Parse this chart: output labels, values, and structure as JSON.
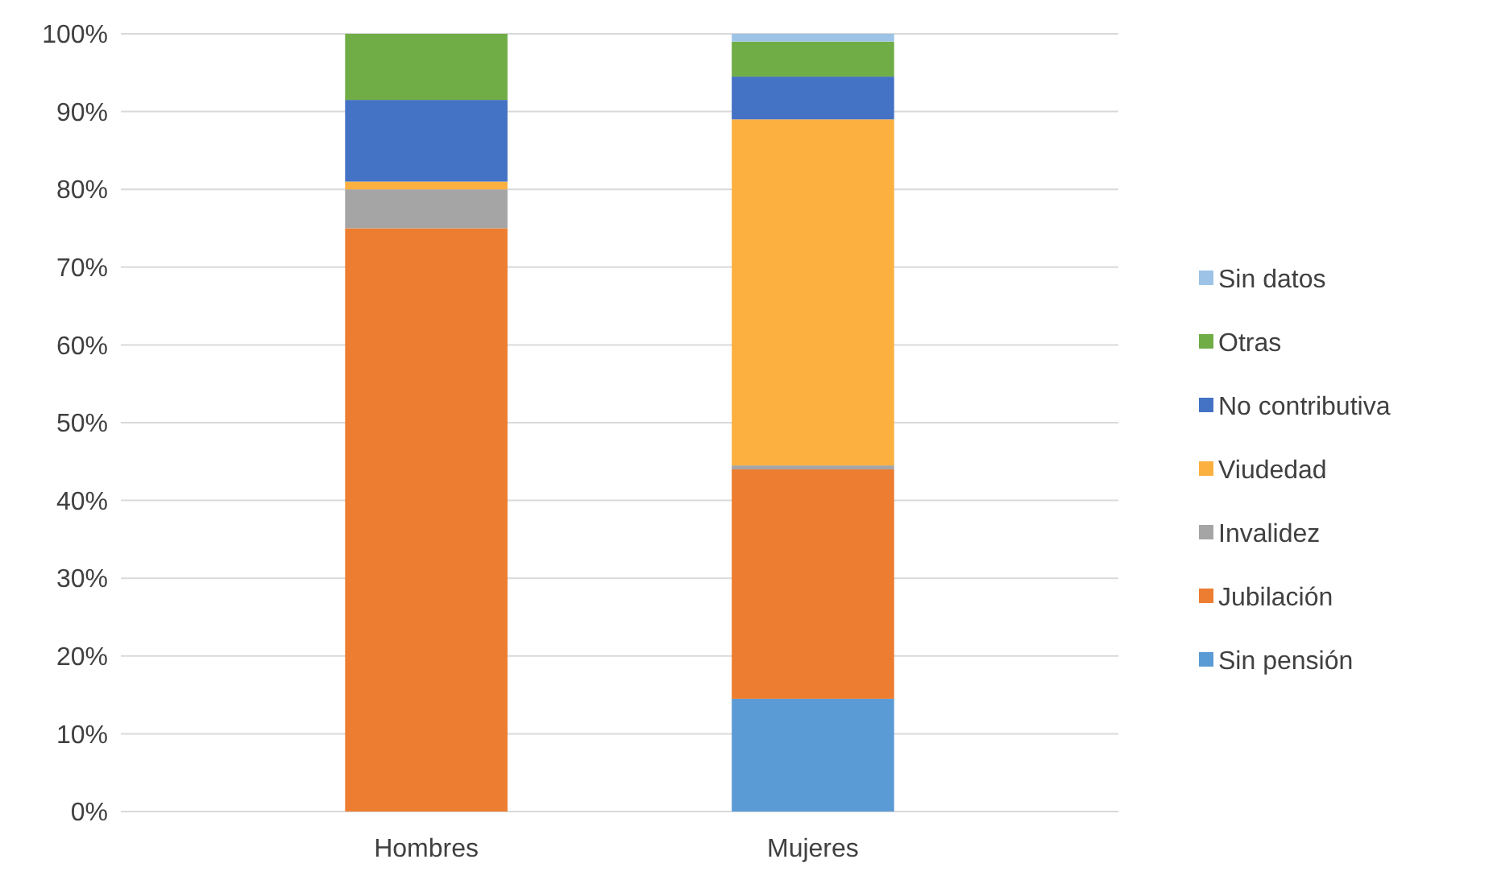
{
  "chart_data": {
    "type": "bar",
    "stacked": true,
    "categories": [
      "Hombres",
      "Mujeres"
    ],
    "series": [
      {
        "name": "Sin pensión",
        "color": "#5b9bd5",
        "values": [
          0,
          14.5
        ]
      },
      {
        "name": "Jubilación",
        "color": "#ed7d31",
        "values": [
          75,
          29.5
        ]
      },
      {
        "name": "Invalidez",
        "color": "#a5a5a5",
        "values": [
          5,
          0.5
        ]
      },
      {
        "name": "Viudedad",
        "color": "#fbb040",
        "values": [
          1,
          44.5
        ]
      },
      {
        "name": "No contributiva",
        "color": "#4472c4",
        "values": [
          10.5,
          5.5
        ]
      },
      {
        "name": "Otras",
        "color": "#70ad47",
        "values": [
          8.5,
          4.5
        ]
      },
      {
        "name": "Sin datos",
        "color": "#9dc3e6",
        "values": [
          0,
          1
        ]
      }
    ],
    "ylim": [
      0,
      100
    ],
    "yticks": [
      {
        "value": 0,
        "label": "0%"
      },
      {
        "value": 10,
        "label": "10%"
      },
      {
        "value": 20,
        "label": "20%"
      },
      {
        "value": 30,
        "label": "30%"
      },
      {
        "value": 40,
        "label": "40%"
      },
      {
        "value": 50,
        "label": "50%"
      },
      {
        "value": 60,
        "label": "60%"
      },
      {
        "value": 70,
        "label": "70%"
      },
      {
        "value": 80,
        "label": "80%"
      },
      {
        "value": 90,
        "label": "90%"
      },
      {
        "value": 100,
        "label": "100%"
      }
    ],
    "grid": "y",
    "legend": "right"
  }
}
